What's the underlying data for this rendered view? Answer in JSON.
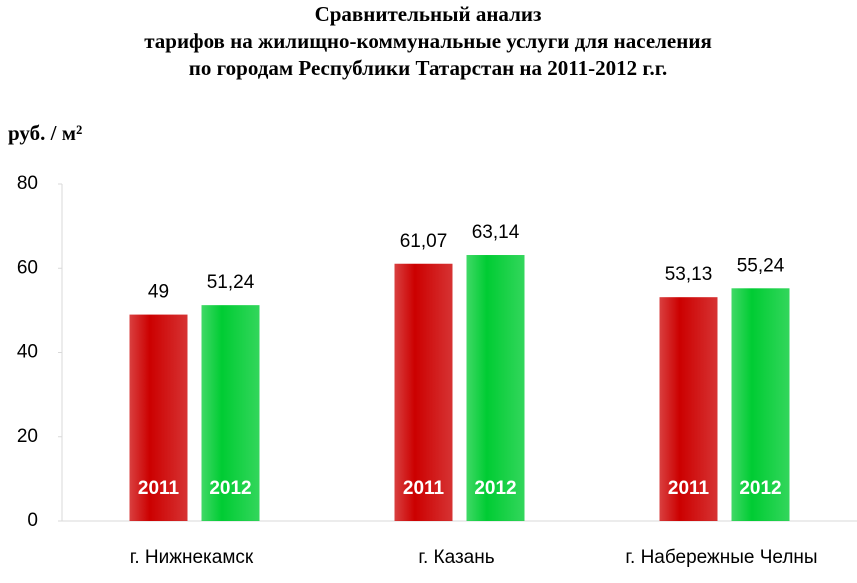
{
  "chart_data": {
    "type": "bar",
    "title_lines": [
      "Сравнительный анализ",
      "тарифов на жилищно-коммунальные услуги для населения",
      "по городам Республики Татарстан  на 2011-2012 г.г."
    ],
    "y_label": "руб. / м²",
    "categories": [
      "г. Нижнекамск",
      "г. Казань",
      "г. Набережные  Челны"
    ],
    "series": [
      {
        "name": "2011",
        "color": "#cc0000",
        "values": [
          49,
          61.07,
          53.13
        ],
        "value_labels": [
          "49",
          "61,07",
          "53,13"
        ]
      },
      {
        "name": "2012",
        "color": "#00cc33",
        "values": [
          51.24,
          63.14,
          55.24
        ],
        "value_labels": [
          "51,24",
          "63,14",
          "55,24"
        ]
      }
    ],
    "ylim": [
      0,
      80
    ],
    "yticks": [
      0,
      20,
      40,
      60,
      80
    ],
    "grid": false
  }
}
